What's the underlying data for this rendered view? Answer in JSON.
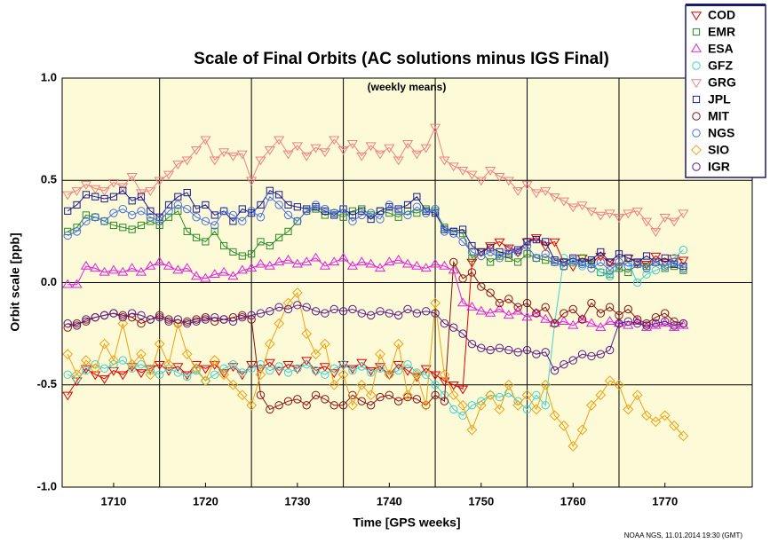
{
  "chart_data": {
    "type": "line",
    "title": "Scale of Final Orbits (AC solutions minus IGS Final)",
    "annotation": "(weekly means)",
    "xlabel": "Time [GPS weeks]",
    "ylabel": "Orbit scale [ppb]",
    "footer": "NOAA NGS, 11.01.2014 19:30 (GMT)",
    "xlim": [
      1704.4,
      1779.5
    ],
    "xticks": [
      1710,
      1720,
      1730,
      1740,
      1750,
      1760,
      1770
    ],
    "xgrid": [
      1715,
      1725,
      1735,
      1745,
      1755,
      1765
    ],
    "ylim": [
      -1,
      1
    ],
    "yticks": [
      {
        "value": -1,
        "label": "-1.0"
      },
      {
        "value": -0.5,
        "label": "-0.5"
      },
      {
        "value": 0,
        "label": "0.0"
      },
      {
        "value": 0.5,
        "label": "0.5"
      },
      {
        "value": 1,
        "label": "1.0"
      }
    ],
    "grid": true,
    "legend": "upper right",
    "x": [
      1705,
      1706,
      1707,
      1708,
      1709,
      1710,
      1711,
      1712,
      1713,
      1714,
      1715,
      1716,
      1717,
      1718,
      1719,
      1720,
      1721,
      1722,
      1723,
      1724,
      1725,
      1726,
      1727,
      1728,
      1729,
      1730,
      1731,
      1732,
      1733,
      1734,
      1735,
      1736,
      1737,
      1738,
      1739,
      1740,
      1741,
      1742,
      1743,
      1744,
      1745,
      1746,
      1747,
      1748,
      1749,
      1750,
      1751,
      1752,
      1753,
      1754,
      1755,
      1756,
      1757,
      1758,
      1759,
      1760,
      1761,
      1762,
      1763,
      1764,
      1765,
      1766,
      1767,
      1768,
      1769,
      1770,
      1771,
      1772
    ],
    "series": [
      {
        "name": "COD",
        "color": "#e00000",
        "marker": "tri-down",
        "values": [
          -0.55,
          -0.48,
          -0.42,
          -0.45,
          -0.47,
          -0.43,
          -0.45,
          -0.41,
          -0.44,
          -0.42,
          -0.4,
          -0.43,
          -0.41,
          -0.45,
          -0.4,
          -0.42,
          -0.4,
          -0.44,
          -0.41,
          -0.45,
          -0.4,
          -0.42,
          -0.39,
          -0.43,
          -0.4,
          -0.42,
          -0.38,
          -0.43,
          -0.41,
          -0.44,
          -0.4,
          -0.42,
          -0.39,
          -0.43,
          -0.41,
          -0.45,
          -0.4,
          -0.43,
          -0.46,
          -0.42,
          -0.45,
          -0.48,
          -0.5,
          -0.52,
          0.1,
          0.15,
          0.18,
          0.2,
          0.17,
          0.15,
          0.2,
          0.22,
          0.18,
          0.2,
          0.1,
          0.08,
          0.12,
          0.1,
          0.13,
          0.1,
          0.08,
          0.12,
          0.1,
          0.09,
          0.13,
          0.1,
          0.12,
          0.11
        ]
      },
      {
        "name": "EMR",
        "color": "#2a8a2a",
        "marker": "square",
        "values": [
          0.25,
          0.27,
          0.33,
          0.32,
          0.3,
          0.28,
          0.27,
          0.26,
          0.28,
          0.3,
          0.28,
          0.32,
          0.35,
          0.25,
          0.22,
          0.2,
          0.25,
          0.18,
          0.15,
          0.13,
          0.14,
          0.2,
          0.18,
          0.22,
          0.25,
          0.3,
          0.35,
          0.36,
          0.33,
          0.34,
          0.32,
          0.35,
          0.36,
          0.33,
          0.35,
          0.34,
          0.32,
          0.35,
          0.34,
          0.36,
          0.35,
          0.27,
          0.25,
          0.24,
          0.12,
          0.15,
          0.1,
          0.13,
          0.12,
          0.1,
          0.14,
          0.12,
          0.11,
          0.1,
          0.08,
          0.1,
          0.12,
          0.09,
          0.05,
          0.04,
          0.07,
          0.05,
          0.09,
          0.08,
          0.1,
          0.07,
          0.08,
          0.06
        ]
      },
      {
        "name": "ESA",
        "color": "#e020e0",
        "marker": "tri-up",
        "values": [
          -0.01,
          -0.01,
          0.08,
          0.07,
          0.05,
          0.06,
          0.05,
          0.07,
          0.05,
          0.08,
          0.1,
          0.08,
          0.06,
          0.07,
          0.03,
          0.02,
          0.04,
          0.05,
          0.03,
          0.06,
          0.07,
          0.09,
          0.08,
          0.1,
          0.11,
          0.09,
          0.1,
          0.12,
          0.08,
          0.1,
          0.12,
          0.08,
          0.1,
          0.09,
          0.07,
          0.1,
          0.11,
          0.09,
          0.08,
          0.07,
          0.09,
          0.08,
          0.06,
          -0.1,
          -0.12,
          -0.14,
          -0.15,
          -0.13,
          -0.16,
          -0.14,
          -0.17,
          -0.15,
          -0.18,
          -0.2,
          -0.19,
          -0.21,
          -0.18,
          -0.2,
          -0.22,
          -0.19,
          -0.2,
          -0.21,
          -0.19,
          -0.22,
          -0.21,
          -0.2,
          -0.22,
          -0.21
        ]
      },
      {
        "name": "GFZ",
        "color": "#40d0d0",
        "marker": "circle",
        "values": [
          -0.45,
          -0.47,
          -0.43,
          -0.4,
          -0.42,
          -0.4,
          -0.38,
          -0.42,
          -0.4,
          -0.43,
          -0.45,
          -0.42,
          -0.44,
          -0.46,
          -0.43,
          -0.48,
          -0.45,
          -0.42,
          -0.4,
          -0.44,
          -0.42,
          -0.4,
          -0.43,
          -0.41,
          -0.44,
          -0.42,
          -0.4,
          -0.43,
          -0.45,
          -0.42,
          -0.4,
          -0.43,
          -0.41,
          -0.44,
          -0.42,
          -0.45,
          -0.43,
          -0.4,
          -0.44,
          -0.45,
          -0.5,
          -0.55,
          -0.62,
          -0.65,
          -0.6,
          -0.58,
          -0.55,
          -0.56,
          -0.54,
          -0.58,
          -0.62,
          -0.55,
          -0.6,
          -0.2,
          0.12,
          0.1,
          0.08,
          0.1,
          0.05,
          0.03,
          0.08,
          0.1,
          0.0,
          0.04,
          0.06,
          0.08,
          0.12,
          0.16
        ]
      },
      {
        "name": "GRG",
        "color": "#f08080",
        "marker": "tri-down",
        "values": [
          0.43,
          0.45,
          0.48,
          0.46,
          0.45,
          0.49,
          0.47,
          0.52,
          0.44,
          0.45,
          0.5,
          0.53,
          0.58,
          0.6,
          0.65,
          0.7,
          0.6,
          0.64,
          0.62,
          0.63,
          0.5,
          0.6,
          0.65,
          0.7,
          0.63,
          0.67,
          0.62,
          0.66,
          0.64,
          0.7,
          0.65,
          0.68,
          0.62,
          0.67,
          0.63,
          0.66,
          0.6,
          0.68,
          0.63,
          0.66,
          0.76,
          0.6,
          0.57,
          0.55,
          0.53,
          0.5,
          0.55,
          0.52,
          0.5,
          0.45,
          0.48,
          0.44,
          0.45,
          0.42,
          0.4,
          0.37,
          0.38,
          0.35,
          0.33,
          0.34,
          0.32,
          0.34,
          0.35,
          0.3,
          0.25,
          0.32,
          0.3,
          0.34
        ]
      },
      {
        "name": "JPL",
        "color": "#1a1a90",
        "marker": "square",
        "values": [
          0.35,
          0.38,
          0.43,
          0.42,
          0.41,
          0.42,
          0.45,
          0.4,
          0.42,
          0.35,
          0.32,
          0.38,
          0.42,
          0.44,
          0.36,
          0.38,
          0.33,
          0.35,
          0.3,
          0.36,
          0.34,
          0.38,
          0.45,
          0.43,
          0.38,
          0.37,
          0.36,
          0.37,
          0.35,
          0.33,
          0.36,
          0.33,
          0.35,
          0.31,
          0.35,
          0.37,
          0.36,
          0.38,
          0.42,
          0.35,
          0.34,
          0.26,
          0.25,
          0.26,
          0.18,
          0.15,
          0.17,
          0.15,
          0.14,
          0.16,
          0.2,
          0.21,
          0.2,
          0.11,
          0.1,
          0.12,
          0.1,
          0.11,
          0.15,
          0.1,
          0.14,
          0.12,
          0.1,
          0.13,
          0.1,
          0.12,
          0.09,
          0.08
        ]
      },
      {
        "name": "MIT",
        "color": "#8b1010",
        "marker": "circle",
        "values": [
          -0.22,
          -0.2,
          -0.19,
          -0.17,
          -0.16,
          -0.15,
          -0.16,
          -0.17,
          -0.2,
          -0.18,
          -0.16,
          -0.18,
          -0.2,
          -0.19,
          -0.18,
          -0.17,
          -0.19,
          -0.18,
          -0.17,
          -0.16,
          -0.18,
          -0.55,
          -0.62,
          -0.6,
          -0.58,
          -0.57,
          -0.6,
          -0.55,
          -0.57,
          -0.6,
          -0.6,
          -0.55,
          -0.58,
          -0.6,
          -0.56,
          -0.55,
          -0.58,
          -0.56,
          -0.57,
          -0.6,
          -0.55,
          -0.58,
          0.1,
          0.02,
          0.05,
          -0.02,
          -0.05,
          -0.1,
          -0.08,
          -0.12,
          -0.1,
          -0.15,
          -0.12,
          -0.2,
          -0.15,
          -0.13,
          -0.18,
          -0.1,
          -0.15,
          -0.12,
          -0.16,
          -0.13,
          -0.18,
          -0.2,
          -0.17,
          -0.15,
          -0.19,
          -0.2
        ]
      },
      {
        "name": "NGS",
        "color": "#4a70e0",
        "marker": "circle",
        "values": [
          0.23,
          0.25,
          0.3,
          0.32,
          0.3,
          0.34,
          0.36,
          0.33,
          0.35,
          0.32,
          0.3,
          0.35,
          0.38,
          0.36,
          0.32,
          0.3,
          0.28,
          0.35,
          0.33,
          0.3,
          0.35,
          0.32,
          0.42,
          0.38,
          0.33,
          0.3,
          0.35,
          0.38,
          0.36,
          0.34,
          0.36,
          0.3,
          0.33,
          0.34,
          0.31,
          0.38,
          0.35,
          0.33,
          0.37,
          0.34,
          0.36,
          0.25,
          0.24,
          0.2,
          0.15,
          0.13,
          0.15,
          0.12,
          0.16,
          0.15,
          0.18,
          0.12,
          0.14,
          0.1,
          0.08,
          0.11,
          0.09,
          0.07,
          0.1,
          0.06,
          0.1,
          0.08,
          0.09,
          0.07,
          0.1,
          0.08,
          0.1,
          0.07
        ]
      },
      {
        "name": "SIO",
        "color": "#f0a010",
        "marker": "diamond",
        "values": [
          -0.35,
          -0.45,
          -0.38,
          -0.42,
          -0.3,
          -0.38,
          -0.2,
          -0.4,
          -0.35,
          -0.45,
          -0.3,
          -0.4,
          -0.2,
          -0.35,
          -0.42,
          -0.48,
          -0.38,
          -0.45,
          -0.5,
          -0.55,
          -0.6,
          -0.45,
          -0.3,
          -0.2,
          -0.1,
          -0.05,
          -0.25,
          -0.35,
          -0.3,
          -0.5,
          -0.45,
          -0.6,
          -0.5,
          -0.55,
          -0.35,
          -0.45,
          -0.3,
          -0.55,
          -0.45,
          -0.6,
          -0.1,
          -0.45,
          -0.55,
          -0.6,
          -0.72,
          -0.6,
          -0.55,
          -0.62,
          -0.5,
          -0.6,
          -0.55,
          -0.62,
          -0.5,
          -0.65,
          -0.7,
          -0.8,
          -0.72,
          -0.6,
          -0.55,
          -0.48,
          -0.5,
          -0.62,
          -0.55,
          -0.65,
          -0.68,
          -0.65,
          -0.7,
          -0.75
        ]
      },
      {
        "name": "IGR",
        "color": "#5a1a8a",
        "marker": "circle",
        "values": [
          -0.2,
          -0.21,
          -0.18,
          -0.17,
          -0.16,
          -0.15,
          -0.17,
          -0.15,
          -0.16,
          -0.18,
          -0.17,
          -0.19,
          -0.18,
          -0.2,
          -0.19,
          -0.18,
          -0.17,
          -0.18,
          -0.19,
          -0.17,
          -0.16,
          -0.15,
          -0.14,
          -0.12,
          -0.13,
          -0.11,
          -0.12,
          -0.14,
          -0.15,
          -0.13,
          -0.14,
          -0.13,
          -0.15,
          -0.16,
          -0.14,
          -0.15,
          -0.16,
          -0.13,
          -0.15,
          -0.14,
          -0.15,
          -0.2,
          -0.22,
          -0.25,
          -0.3,
          -0.32,
          -0.33,
          -0.32,
          -0.33,
          -0.34,
          -0.33,
          -0.35,
          -0.34,
          -0.43,
          -0.4,
          -0.38,
          -0.35,
          -0.36,
          -0.35,
          -0.33,
          -0.2,
          -0.19,
          -0.2,
          -0.21,
          -0.2,
          -0.19,
          -0.21,
          -0.2
        ]
      }
    ]
  }
}
